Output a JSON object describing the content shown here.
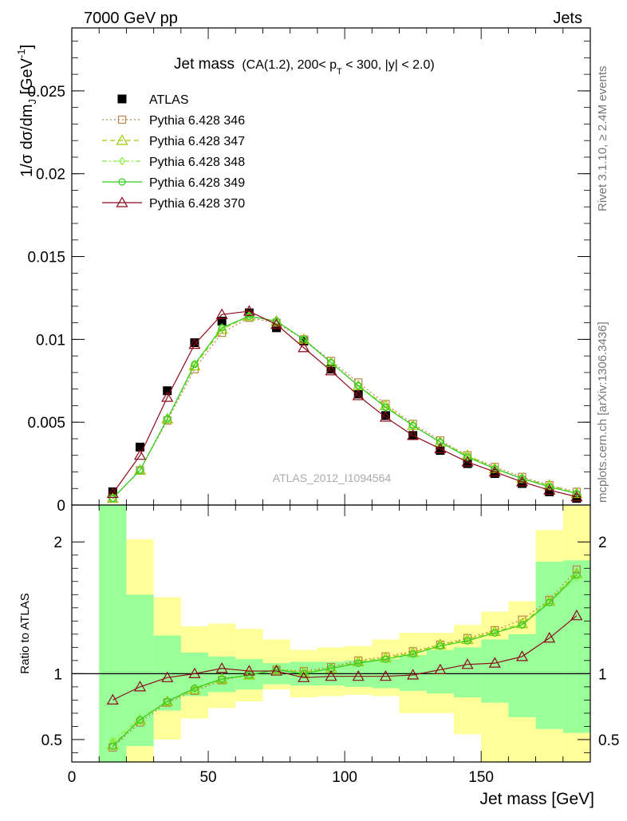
{
  "header": {
    "left": "7000 GeV pp",
    "right": "Jets"
  },
  "side_labels": {
    "rivet": "Rivet 3.1.10, ≥ 2.4M events",
    "mcplots": "mcplots.cern.ch [arXiv:1306.3436]"
  },
  "chart_data": [
    {
      "type": "line",
      "title": "Jet mass",
      "subtitle_parts": {
        "pre": "(CA(1.2), 200< p",
        "sub": "T",
        "post": " < 300, |y| < 2.0)"
      },
      "ylabel_parts": {
        "main": "1/σ dσ/dm",
        "sub": "J",
        "unit": " [GeV",
        "sup": "-1",
        "close": "]"
      },
      "watermark": "ATLAS_2012_I1094564",
      "xlim": [
        0,
        190
      ],
      "ylim": [
        0,
        0.0288
      ],
      "yticks": [
        0,
        0.005,
        0.01,
        0.015,
        0.02,
        0.025
      ],
      "ytick_labels": [
        "0",
        "0.005",
        "0.01",
        "0.015",
        "0.02",
        "0.025"
      ],
      "x": [
        15,
        25,
        35,
        45,
        55,
        65,
        75,
        85,
        95,
        105,
        115,
        125,
        135,
        145,
        155,
        165,
        175,
        185
      ],
      "series": [
        {
          "name": "ATLAS",
          "color": "#000000",
          "marker": "filled-square",
          "dash": "none",
          "values": [
            0.0008,
            0.0035,
            0.0069,
            0.0098,
            0.0111,
            0.0116,
            0.0107,
            0.0099,
            0.0082,
            0.0067,
            0.0054,
            0.0042,
            0.0033,
            0.0025,
            0.0019,
            0.0013,
            0.0008,
            0.0004
          ]
        },
        {
          "name": "Pythia 6.428 346",
          "color": "#b8864b",
          "marker": "open-square",
          "dash": "dotted",
          "values": [
            0.0004,
            0.0021,
            0.0051,
            0.0082,
            0.0104,
            0.0113,
            0.011,
            0.01,
            0.0087,
            0.0074,
            0.0061,
            0.0049,
            0.0039,
            0.003,
            0.0023,
            0.0017,
            0.0012,
            0.0008
          ]
        },
        {
          "name": "Pythia 6.428 347",
          "color": "#99cc00",
          "marker": "open-triangle",
          "dash": "dashed",
          "values": [
            0.0004,
            0.0021,
            0.0052,
            0.0084,
            0.0106,
            0.0114,
            0.0111,
            0.01,
            0.0086,
            0.0072,
            0.006,
            0.0048,
            0.0038,
            0.003,
            0.0022,
            0.0016,
            0.0012,
            0.0007
          ]
        },
        {
          "name": "Pythia 6.428 348",
          "color": "#88ee44",
          "marker": "open-diamond",
          "dash": "dashdot",
          "values": [
            0.0004,
            0.0021,
            0.0052,
            0.0085,
            0.0107,
            0.0114,
            0.0111,
            0.01,
            0.0086,
            0.0072,
            0.0059,
            0.0048,
            0.0038,
            0.0029,
            0.0022,
            0.0016,
            0.0011,
            0.0007
          ]
        },
        {
          "name": "Pythia 6.428 349",
          "color": "#33cc22",
          "marker": "open-circle",
          "dash": "none",
          "values": [
            0.0004,
            0.0021,
            0.0052,
            0.0085,
            0.0107,
            0.0114,
            0.0111,
            0.01,
            0.0086,
            0.0072,
            0.0059,
            0.0048,
            0.0038,
            0.0029,
            0.0022,
            0.0016,
            0.0011,
            0.0007
          ]
        },
        {
          "name": "Pythia 6.428 370",
          "color": "#8b0a1a",
          "marker": "open-triangle",
          "dash": "none",
          "values": [
            0.0007,
            0.003,
            0.0065,
            0.0097,
            0.0115,
            0.0117,
            0.0109,
            0.0095,
            0.0081,
            0.0066,
            0.0053,
            0.0042,
            0.0034,
            0.0026,
            0.002,
            0.0014,
            0.0009,
            0.0005
          ]
        }
      ]
    },
    {
      "type": "line",
      "ylabel": "Ratio to ATLAS",
      "xlabel": "Jet mass [GeV]",
      "xlim": [
        0,
        190
      ],
      "ylim": [
        0.33,
        2.28
      ],
      "yticks": [
        0.5,
        1,
        2
      ],
      "ytick_labels": [
        "0.5",
        "1",
        "2"
      ],
      "xticks": [
        0,
        50,
        100,
        150
      ],
      "xtick_labels": [
        "0",
        "50",
        "100",
        "150"
      ],
      "reference_line": 1,
      "uncertainty_bins": [
        {
          "lo": 10,
          "hi": 20,
          "inner": [
            0.33,
            2.28
          ],
          "outer": [
            0.33,
            2.28
          ]
        },
        {
          "lo": 20,
          "hi": 30,
          "inner": [
            0.45,
            1.6
          ],
          "outer": [
            0.33,
            2.02
          ]
        },
        {
          "lo": 30,
          "hi": 40,
          "inner": [
            0.72,
            1.29
          ],
          "outer": [
            0.5,
            1.58
          ]
        },
        {
          "lo": 40,
          "hi": 50,
          "inner": [
            0.83,
            1.16
          ],
          "outer": [
            0.66,
            1.36
          ]
        },
        {
          "lo": 50,
          "hi": 60,
          "inner": [
            0.86,
            1.13
          ],
          "outer": [
            0.74,
            1.38
          ]
        },
        {
          "lo": 60,
          "hi": 70,
          "inner": [
            0.88,
            1.11
          ],
          "outer": [
            0.79,
            1.34
          ]
        },
        {
          "lo": 70,
          "hi": 80,
          "inner": [
            0.92,
            1.08
          ],
          "outer": [
            0.88,
            1.26
          ]
        },
        {
          "lo": 80,
          "hi": 90,
          "inner": [
            0.91,
            1.09
          ],
          "outer": [
            0.82,
            1.18
          ]
        },
        {
          "lo": 90,
          "hi": 100,
          "inner": [
            0.91,
            1.09
          ],
          "outer": [
            0.83,
            1.2
          ]
        },
        {
          "lo": 100,
          "hi": 110,
          "inner": [
            0.9,
            1.1
          ],
          "outer": [
            0.84,
            1.21
          ]
        },
        {
          "lo": 110,
          "hi": 120,
          "inner": [
            0.89,
            1.11
          ],
          "outer": [
            0.83,
            1.26
          ]
        },
        {
          "lo": 120,
          "hi": 130,
          "inner": [
            0.87,
            1.14
          ],
          "outer": [
            0.7,
            1.31
          ]
        },
        {
          "lo": 130,
          "hi": 140,
          "inner": [
            0.85,
            1.18
          ],
          "outer": [
            0.7,
            1.31
          ]
        },
        {
          "lo": 140,
          "hi": 150,
          "inner": [
            0.82,
            1.2
          ],
          "outer": [
            0.54,
            1.37
          ]
        },
        {
          "lo": 150,
          "hi": 160,
          "inner": [
            0.78,
            1.26
          ],
          "outer": [
            0.33,
            1.47
          ]
        },
        {
          "lo": 160,
          "hi": 170,
          "inner": [
            0.67,
            1.3
          ],
          "outer": [
            0.33,
            1.55
          ]
        },
        {
          "lo": 170,
          "hi": 180,
          "inner": [
            0.58,
            1.85
          ],
          "outer": [
            0.33,
            2.09
          ]
        },
        {
          "lo": 180,
          "hi": 190,
          "inner": [
            0.55,
            1.86
          ],
          "outer": [
            0.33,
            2.28
          ]
        }
      ],
      "x": [
        15,
        25,
        35,
        45,
        55,
        65,
        75,
        85,
        95,
        105,
        115,
        125,
        135,
        145,
        155,
        165,
        175,
        185
      ],
      "series": [
        {
          "name": "Pythia 6.428 346",
          "color": "#b8864b",
          "marker": "open-square",
          "dash": "dotted",
          "values": [
            0.44,
            0.63,
            0.78,
            0.87,
            0.95,
            0.99,
            1.03,
            1.02,
            1.05,
            1.1,
            1.13,
            1.17,
            1.22,
            1.27,
            1.33,
            1.41,
            1.56,
            1.79
          ]
        },
        {
          "name": "Pythia 6.428 347",
          "color": "#99cc00",
          "marker": "open-triangle",
          "dash": "dashed",
          "values": [
            0.46,
            0.65,
            0.79,
            0.88,
            0.96,
            0.99,
            1.03,
            1.01,
            1.04,
            1.09,
            1.12,
            1.16,
            1.22,
            1.26,
            1.32,
            1.38,
            1.55,
            1.76
          ]
        },
        {
          "name": "Pythia 6.428 348",
          "color": "#88ee44",
          "marker": "open-diamond",
          "dash": "dashdot",
          "values": [
            0.49,
            0.66,
            0.79,
            0.89,
            0.96,
            0.99,
            1.03,
            1.0,
            1.04,
            1.08,
            1.11,
            1.15,
            1.21,
            1.25,
            1.31,
            1.37,
            1.54,
            1.73
          ]
        },
        {
          "name": "Pythia 6.428 349",
          "color": "#33cc22",
          "marker": "open-circle",
          "dash": "none",
          "values": [
            0.45,
            0.65,
            0.79,
            0.89,
            0.96,
            0.99,
            1.03,
            1.0,
            1.04,
            1.08,
            1.11,
            1.15,
            1.21,
            1.25,
            1.31,
            1.37,
            1.54,
            1.75
          ]
        },
        {
          "name": "Pythia 6.428 370",
          "color": "#8b0a1a",
          "marker": "open-triangle",
          "dash": "none",
          "values": [
            0.8,
            0.9,
            0.97,
            1.0,
            1.04,
            1.02,
            1.02,
            0.97,
            0.98,
            0.98,
            0.98,
            0.99,
            1.03,
            1.07,
            1.08,
            1.13,
            1.27,
            1.44
          ]
        }
      ]
    }
  ]
}
